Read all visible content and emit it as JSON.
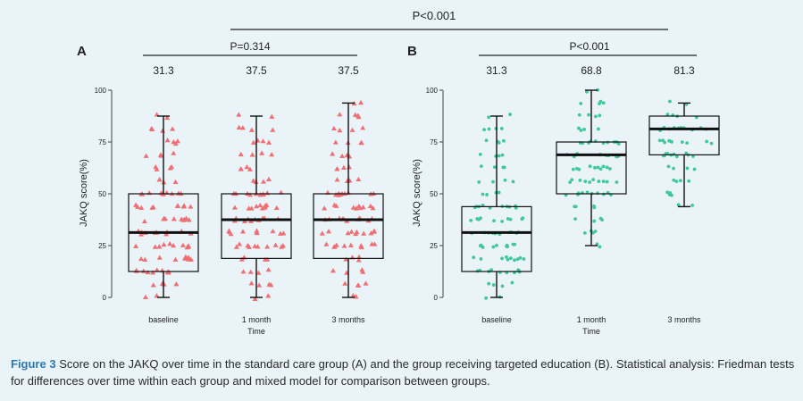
{
  "figure": {
    "overall_p": "P<0.001",
    "caption_label": "Figure 3",
    "caption_text": "Score on the JAKQ over time in the standard care group (A) and the group receiving targeted education (B). Statistical analysis: Friedman tests for differences over time within each group and mixed model for comparison between groups."
  },
  "colors": {
    "panel_a": "#ef6f73",
    "panel_b": "#3fc99a",
    "accent": "#2a7ab7",
    "background": "#e9f3f8"
  },
  "chart_data": [
    {
      "type": "boxplot",
      "panel": "A",
      "p_value": "P=0.314",
      "xlabel": "Time",
      "ylabel": "JAKQ score(%)",
      "ylim": [
        0,
        100
      ],
      "yticks": [
        "0",
        "25",
        "50",
        "75",
        "100"
      ],
      "categories": [
        "baseline",
        "1 month",
        "3 months"
      ],
      "medians": [
        31.3,
        37.5,
        37.5
      ],
      "median_labels": [
        "31.3",
        "37.5",
        "37.5"
      ],
      "boxes": [
        {
          "min": 0,
          "q1": 12.5,
          "median": 31.3,
          "q3": 50,
          "max": 87.5
        },
        {
          "min": 0,
          "q1": 18.8,
          "median": 37.5,
          "q3": 50,
          "max": 87.5
        },
        {
          "min": 0,
          "q1": 18.8,
          "median": 37.5,
          "q3": 50,
          "max": 93.8
        }
      ],
      "marker": "triangle"
    },
    {
      "type": "boxplot",
      "panel": "B",
      "p_value": "P<0.001",
      "xlabel": "Time",
      "ylabel": "JAKQ score(%)",
      "ylim": [
        0,
        100
      ],
      "yticks": [
        "0",
        "25",
        "50",
        "75",
        "100"
      ],
      "categories": [
        "baseline",
        "1 month",
        "3 months"
      ],
      "medians": [
        31.3,
        68.8,
        81.3
      ],
      "median_labels": [
        "31.3",
        "68.8",
        "81.3"
      ],
      "boxes": [
        {
          "min": 0,
          "q1": 12.5,
          "median": 31.3,
          "q3": 43.8,
          "max": 87.5
        },
        {
          "min": 25,
          "q1": 50,
          "median": 68.8,
          "q3": 75,
          "max": 100
        },
        {
          "min": 43.8,
          "q1": 68.8,
          "median": 81.3,
          "q3": 87.5,
          "max": 93.8
        }
      ],
      "marker": "dot"
    }
  ]
}
